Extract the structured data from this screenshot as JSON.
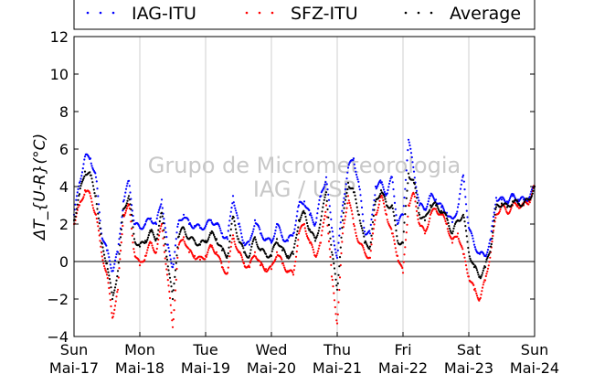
{
  "chart_data": {
    "type": "scatter",
    "ylabel": "ΔT_{U-R}(°C)",
    "ylim": [
      -4,
      12
    ],
    "yticks": [
      -4,
      -2,
      0,
      2,
      4,
      6,
      8,
      10,
      12
    ],
    "xlim": [
      "2015-05-17 00:00",
      "2015-05-24 00:00"
    ],
    "x_ticks": [
      {
        "day": "Sun",
        "date": "Mai-17"
      },
      {
        "day": "Mon",
        "date": "Mai-18"
      },
      {
        "day": "Tue",
        "date": "Mai-19"
      },
      {
        "day": "Wed",
        "date": "Mai-20"
      },
      {
        "day": "Thu",
        "date": "Mai-21"
      },
      {
        "day": "Fri",
        "date": "Mai-22"
      },
      {
        "day": "Sat",
        "date": "Mai-23"
      },
      {
        "day": "Sun",
        "date": "Mai-24"
      }
    ],
    "grid": "vertical",
    "legend_position": "top",
    "watermark": [
      "Grupo de Micrometeorologia",
      "IAG / USP"
    ],
    "series": [
      {
        "name": "IAG-ITU",
        "color": "#0000ff",
        "x_hours": [
          0,
          2,
          4,
          6,
          8,
          10,
          12,
          14,
          16,
          18,
          20,
          22,
          24,
          26,
          28,
          30,
          32,
          34,
          36,
          38,
          40,
          42,
          44,
          46,
          48,
          50,
          52,
          54,
          56,
          58,
          60,
          62,
          64,
          66,
          68,
          70,
          72,
          74,
          76,
          78,
          80,
          82,
          84,
          86,
          88,
          90,
          92,
          94,
          96,
          98,
          100,
          102,
          104,
          106,
          108,
          110,
          112,
          114,
          116,
          118,
          120,
          122,
          124,
          126,
          128,
          130,
          132,
          134,
          136,
          138,
          140,
          142,
          144,
          146,
          148,
          150,
          152,
          154,
          156,
          158,
          160,
          162,
          164,
          166,
          168
        ],
        "values": [
          2.5,
          4.2,
          5.6,
          5.5,
          4.5,
          1.5,
          0.6,
          -0.5,
          0.5,
          3.2,
          4.3,
          2.0,
          1.8,
          2.0,
          2.3,
          2.0,
          3.3,
          0.9,
          -0.3,
          2.0,
          2.5,
          2.0,
          1.9,
          1.8,
          1.9,
          2.2,
          2.0,
          1.5,
          1.2,
          3.5,
          2.0,
          1.0,
          0.9,
          2.2,
          1.5,
          1.2,
          1.0,
          2.0,
          1.3,
          1.1,
          1.5,
          3.0,
          3.2,
          2.5,
          2.0,
          3.5,
          4.5,
          1.8,
          0.2,
          3.0,
          5.0,
          5.5,
          4.0,
          1.6,
          1.5,
          4.0,
          4.2,
          3.6,
          4.5,
          2.0,
          2.5,
          6.5,
          4.8,
          3.0,
          2.8,
          3.5,
          3.3,
          2.9,
          2.6,
          2.1,
          2.9,
          4.6,
          1.8,
          0.9,
          0.4,
          0.3,
          1.2,
          3.4,
          3.3,
          3.2,
          3.5,
          3.3,
          3.3,
          3.4,
          4.0
        ]
      },
      {
        "name": "SFZ-ITU",
        "color": "#ff0000",
        "x_hours": [
          0,
          2,
          4,
          6,
          8,
          10,
          12,
          14,
          16,
          18,
          20,
          22,
          24,
          26,
          28,
          30,
          32,
          34,
          36,
          38,
          40,
          42,
          44,
          46,
          48,
          50,
          52,
          54,
          56,
          58,
          60,
          62,
          64,
          66,
          68,
          70,
          72,
          74,
          76,
          78,
          80,
          82,
          84,
          86,
          88,
          90,
          92,
          94,
          96,
          98,
          100,
          102,
          104,
          106,
          108,
          110,
          112,
          114,
          116,
          118,
          120,
          122,
          124,
          126,
          128,
          130,
          132,
          134,
          136,
          138,
          140,
          142,
          144,
          146,
          148,
          150,
          152,
          154,
          156,
          158,
          160,
          162,
          164,
          166,
          168
        ],
        "values": [
          2.0,
          3.0,
          3.8,
          3.5,
          2.5,
          0.5,
          -0.7,
          -3.0,
          -1.5,
          2.5,
          3.0,
          0.5,
          -0.2,
          0.3,
          1.0,
          0.5,
          2.0,
          -0.7,
          -3.5,
          0.7,
          1.3,
          0.5,
          0.3,
          0.1,
          0.3,
          0.8,
          0.5,
          -0.3,
          -0.6,
          1.4,
          0.5,
          -0.1,
          -0.3,
          0.5,
          -0.2,
          -0.4,
          -0.4,
          0.5,
          -0.1,
          -0.5,
          -0.7,
          1.5,
          2.0,
          1.0,
          0.3,
          1.0,
          3.0,
          -0.8,
          -3.3,
          1.5,
          3.5,
          2.0,
          1.0,
          0.5,
          0.2,
          2.5,
          3.5,
          2.5,
          1.5,
          0.3,
          -0.6,
          3.0,
          3.6,
          2.0,
          1.5,
          2.5,
          2.8,
          2.5,
          2.0,
          1.0,
          1.5,
          0.4,
          -0.8,
          -1.5,
          -2.0,
          -1.0,
          0.5,
          2.5,
          3.0,
          2.6,
          3.0,
          3.0,
          3.0,
          3.2,
          4.0
        ]
      },
      {
        "name": "Average",
        "color": "#000000",
        "x_hours": [
          0,
          2,
          4,
          6,
          8,
          10,
          12,
          14,
          16,
          18,
          20,
          22,
          24,
          26,
          28,
          30,
          32,
          34,
          36,
          38,
          40,
          42,
          44,
          46,
          48,
          50,
          52,
          54,
          56,
          58,
          60,
          62,
          64,
          66,
          68,
          70,
          72,
          74,
          76,
          78,
          80,
          82,
          84,
          86,
          88,
          90,
          92,
          94,
          96,
          98,
          100,
          102,
          104,
          106,
          108,
          110,
          112,
          114,
          116,
          118,
          120,
          122,
          124,
          126,
          128,
          130,
          132,
          134,
          136,
          138,
          140,
          142,
          144,
          146,
          148,
          150,
          152,
          154,
          156,
          158,
          160,
          162,
          164,
          166,
          168
        ],
        "values": [
          2.2,
          3.6,
          4.8,
          4.6,
          3.5,
          1.0,
          -0.1,
          -2.0,
          -0.5,
          2.8,
          3.5,
          1.2,
          0.8,
          1.1,
          1.6,
          1.2,
          2.6,
          0.1,
          -2.0,
          1.3,
          1.8,
          1.2,
          1.1,
          0.9,
          1.1,
          1.5,
          1.2,
          0.6,
          0.3,
          2.4,
          1.2,
          0.5,
          0.3,
          1.3,
          0.6,
          0.4,
          0.3,
          1.2,
          0.6,
          0.3,
          0.4,
          2.2,
          2.6,
          1.7,
          1.1,
          2.2,
          3.7,
          0.5,
          -1.5,
          2.2,
          4.2,
          3.7,
          2.5,
          1.0,
          0.8,
          3.2,
          3.8,
          3.0,
          3.0,
          1.1,
          1.0,
          4.7,
          4.2,
          2.5,
          2.2,
          3.0,
          3.0,
          2.7,
          2.3,
          1.5,
          2.2,
          2.5,
          0.5,
          -0.3,
          -0.8,
          -0.3,
          0.8,
          2.9,
          3.1,
          2.9,
          3.2,
          3.1,
          3.1,
          3.3,
          4.0
        ]
      }
    ]
  }
}
